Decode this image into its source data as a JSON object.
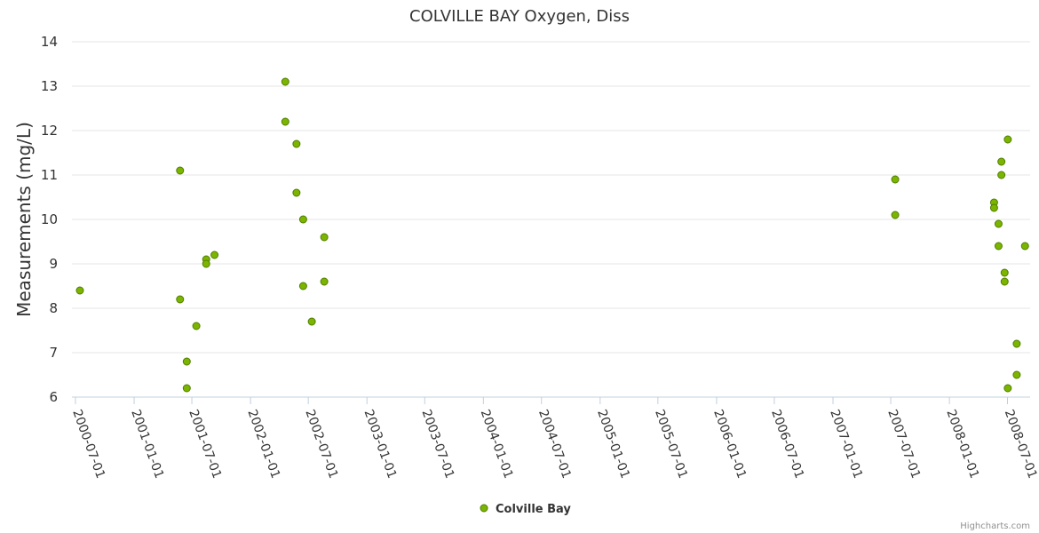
{
  "chart_data": {
    "type": "scatter",
    "title": "COLVILLE BAY Oxygen, Diss",
    "xlabel": "",
    "ylabel": "Measurements (mg/L)",
    "ylim": [
      6,
      14
    ],
    "yticks": [
      6,
      7,
      8,
      9,
      10,
      11,
      12,
      13,
      14
    ],
    "xlim": [
      "2000-06-20",
      "2008-09-10"
    ],
    "xticks": [
      "2000-07-01",
      "2001-01-01",
      "2001-07-01",
      "2002-01-01",
      "2002-07-01",
      "2003-01-01",
      "2003-07-01",
      "2004-01-01",
      "2004-07-01",
      "2005-01-01",
      "2005-07-01",
      "2006-01-01",
      "2006-07-01",
      "2007-01-01",
      "2007-07-01",
      "2008-01-01",
      "2008-07-01"
    ],
    "grid": true,
    "legend": "bottom-center",
    "series": [
      {
        "name": "Colville Bay",
        "color": "#7cb500",
        "points": [
          {
            "x": "2000-07-15",
            "y": 8.4
          },
          {
            "x": "2001-05-25",
            "y": 11.1
          },
          {
            "x": "2001-05-25",
            "y": 8.2
          },
          {
            "x": "2001-06-15",
            "y": 6.8
          },
          {
            "x": "2001-06-15",
            "y": 6.2
          },
          {
            "x": "2001-07-15",
            "y": 7.6
          },
          {
            "x": "2001-08-15",
            "y": 9.1
          },
          {
            "x": "2001-08-15",
            "y": 9.0
          },
          {
            "x": "2001-09-10",
            "y": 9.2
          },
          {
            "x": "2002-04-20",
            "y": 13.1
          },
          {
            "x": "2002-04-20",
            "y": 12.2
          },
          {
            "x": "2002-05-25",
            "y": 11.7
          },
          {
            "x": "2002-05-25",
            "y": 10.6
          },
          {
            "x": "2002-06-15",
            "y": 10.0
          },
          {
            "x": "2002-06-15",
            "y": 8.5
          },
          {
            "x": "2002-07-12",
            "y": 7.7
          },
          {
            "x": "2002-08-20",
            "y": 9.6
          },
          {
            "x": "2002-08-20",
            "y": 8.6
          },
          {
            "x": "2007-07-15",
            "y": 10.9
          },
          {
            "x": "2007-07-15",
            "y": 10.1
          },
          {
            "x": "2008-05-20",
            "y": 10.38
          },
          {
            "x": "2008-05-20",
            "y": 10.26
          },
          {
            "x": "2008-06-03",
            "y": 9.9
          },
          {
            "x": "2008-06-03",
            "y": 9.4
          },
          {
            "x": "2008-06-12",
            "y": 11.3
          },
          {
            "x": "2008-06-12",
            "y": 11.0
          },
          {
            "x": "2008-06-22",
            "y": 8.8
          },
          {
            "x": "2008-06-22",
            "y": 8.6
          },
          {
            "x": "2008-07-02",
            "y": 11.8
          },
          {
            "x": "2008-07-02",
            "y": 6.2
          },
          {
            "x": "2008-07-30",
            "y": 7.2
          },
          {
            "x": "2008-07-30",
            "y": 6.5
          },
          {
            "x": "2008-08-25",
            "y": 9.4
          }
        ]
      }
    ]
  },
  "credits": "Highcharts.com"
}
